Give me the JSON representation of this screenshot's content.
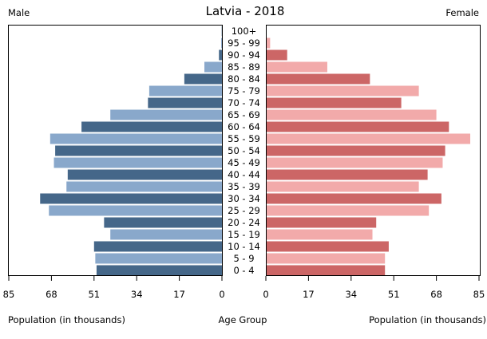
{
  "chart_data": {
    "type": "bar",
    "title": "Latvia - 2018",
    "left_label": "Male",
    "right_label": "Female",
    "xlabel_left": "Population (in thousands)",
    "xlabel_center": "Age Group",
    "xlabel_right": "Population (in thousands)",
    "xlim": [
      0,
      85
    ],
    "ticks": [
      "85",
      "68",
      "51",
      "34",
      "17",
      "0"
    ],
    "ticks_right": [
      "0",
      "17",
      "34",
      "51",
      "68",
      "85"
    ],
    "categories": [
      "0 - 4",
      "5 - 9",
      "10 - 14",
      "15 - 19",
      "20 - 24",
      "25 - 29",
      "30 - 34",
      "35 - 39",
      "40 - 44",
      "45 - 49",
      "50 - 54",
      "55 - 59",
      "60 - 64",
      "65 - 69",
      "70 - 74",
      "75 - 79",
      "80 - 84",
      "85 - 89",
      "90 - 94",
      "95 - 99",
      "100+"
    ],
    "series": [
      {
        "name": "Male",
        "values": [
          50,
          50.5,
          51,
          44.5,
          47,
          69,
          72.5,
          62,
          61.5,
          67,
          66.5,
          68.5,
          56,
          44.5,
          29.5,
          29,
          15,
          7,
          1.2,
          0.3,
          0.1
        ]
      },
      {
        "name": "Female",
        "values": [
          47.5,
          47.5,
          49,
          42.5,
          44,
          65,
          70,
          61,
          64.5,
          70.5,
          71.5,
          81.5,
          73,
          68,
          54,
          61,
          41.5,
          24.5,
          8.5,
          1.7,
          0.3
        ]
      }
    ],
    "colors": {
      "male_dark": "#456789",
      "male_light": "#89a8cb",
      "female_dark": "#cc6666",
      "female_light": "#f2aaaa"
    },
    "grid": false,
    "legend": "none"
  }
}
